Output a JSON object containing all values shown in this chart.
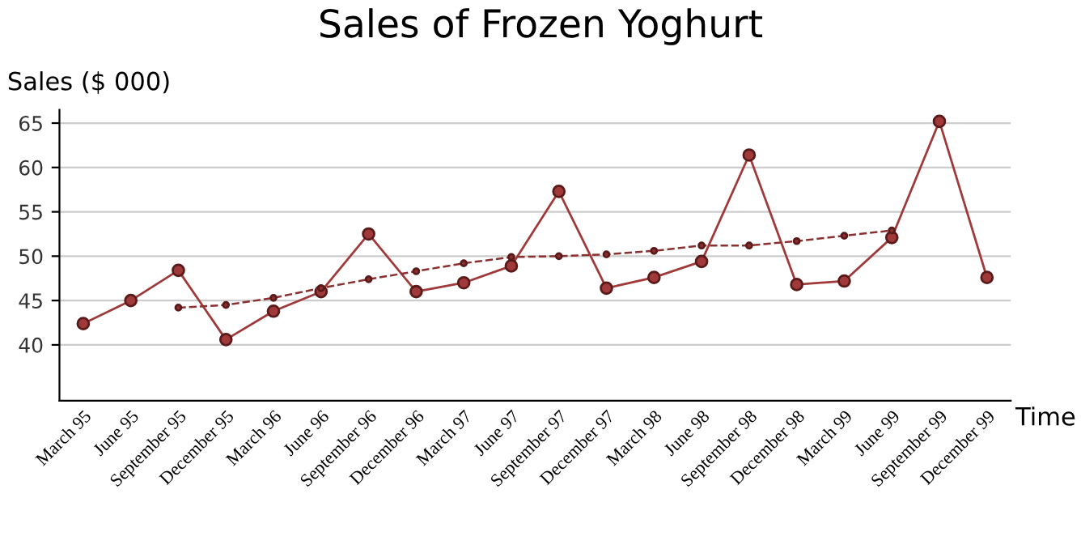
{
  "chart_data": {
    "type": "line",
    "title": "Sales of Frozen Yoghurt",
    "xlabel": "Time",
    "ylabel": "Sales ($ 000)",
    "categories": [
      "March 95",
      "June 95",
      "September 95",
      "December 95",
      "March 96",
      "June 96",
      "September 96",
      "December 96",
      "March 97",
      "June 97",
      "September 97",
      "December 97",
      "March 98",
      "June 98",
      "September 98",
      "December 98",
      "March 99",
      "June 99",
      "September 99",
      "December 99"
    ],
    "series": [
      {
        "color": "#a03a3a",
        "marker": "circle",
        "line_style": "solid",
        "values": [
          42.4,
          45.0,
          48.4,
          40.6,
          43.8,
          46.0,
          52.5,
          46.0,
          47.0,
          48.9,
          57.3,
          46.4,
          47.6,
          49.4,
          61.4,
          46.8,
          47.2,
          52.1,
          65.2,
          47.6
        ]
      },
      {
        "color": "#8b3030",
        "marker": "circle",
        "line_style": "dashed",
        "values": [
          null,
          null,
          44.2,
          44.5,
          45.3,
          46.4,
          47.4,
          48.3,
          49.2,
          49.9,
          50.0,
          50.2,
          50.6,
          51.2,
          51.2,
          51.7,
          52.3,
          52.9,
          null,
          null
        ]
      }
    ],
    "ylim": [
      33.7,
      66.5
    ],
    "yticks": [
      40,
      45,
      50,
      55,
      60,
      65
    ],
    "grid": "y",
    "legend": false
  }
}
